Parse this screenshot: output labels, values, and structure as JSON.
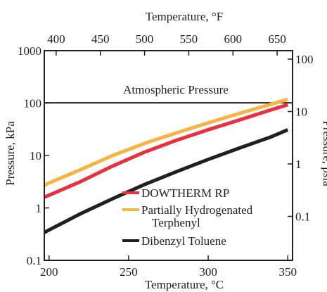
{
  "chart_data": {
    "type": "line",
    "title": "",
    "xlabel": "Temperature, °C",
    "x2label": "Temperature, °F",
    "ylabel": "Pressure, kPa",
    "y2label": "Pressure, psia",
    "xlim": [
      197,
      353
    ],
    "ylim": [
      0.1,
      1000
    ],
    "yscale": "log",
    "x2lim": [
      386.6,
      667.4
    ],
    "y2lim": [
      0.0145,
      145
    ],
    "x_ticks": [
      200,
      250,
      300,
      350
    ],
    "x_tick_labels": [
      "200",
      "250",
      "300",
      "350"
    ],
    "x2_ticks": [
      400,
      450,
      500,
      550,
      600,
      650
    ],
    "x2_tick_labels": [
      "400",
      "450",
      "500",
      "550",
      "600",
      "650"
    ],
    "y_ticks": [
      0.1,
      1,
      10,
      100,
      1000
    ],
    "y_tick_labels": [
      "0.1",
      "1",
      "10",
      "100",
      "1000"
    ],
    "y2_ticks": [
      0.1,
      1,
      10,
      100
    ],
    "y2_tick_labels": [
      "0.1",
      "1",
      "10",
      "100"
    ],
    "grid": false,
    "legend_position": "bottom-right",
    "annotation": {
      "text": "Atmospheric Pressure",
      "value": 101.3
    },
    "series": [
      {
        "name": "DOWTHERM RP",
        "color": "#e8303f",
        "x": [
          197,
          200,
          220,
          240,
          260,
          280,
          300,
          320,
          340,
          350
        ],
        "y": [
          1.6,
          1.75,
          3.2,
          6.3,
          11.6,
          19.5,
          31,
          48,
          75,
          93
        ]
      },
      {
        "name": "Partially Hydrogenated Terphenyl",
        "name_lines": [
          "Partially Hydrogenated",
          "Terphenyl"
        ],
        "color": "#f6b445",
        "x": [
          197,
          200,
          220,
          240,
          260,
          280,
          300,
          320,
          340,
          350
        ],
        "y": [
          2.7,
          3.0,
          5.4,
          10,
          17,
          27,
          42,
          64,
          96,
          118
        ]
      },
      {
        "name": "Dibenzyl Toluene",
        "color": "#231f20",
        "x": [
          197,
          200,
          220,
          240,
          260,
          280,
          300,
          320,
          340,
          350
        ],
        "y": [
          0.34,
          0.38,
          0.78,
          1.5,
          2.8,
          4.9,
          8.4,
          14,
          23,
          31
        ]
      }
    ]
  }
}
